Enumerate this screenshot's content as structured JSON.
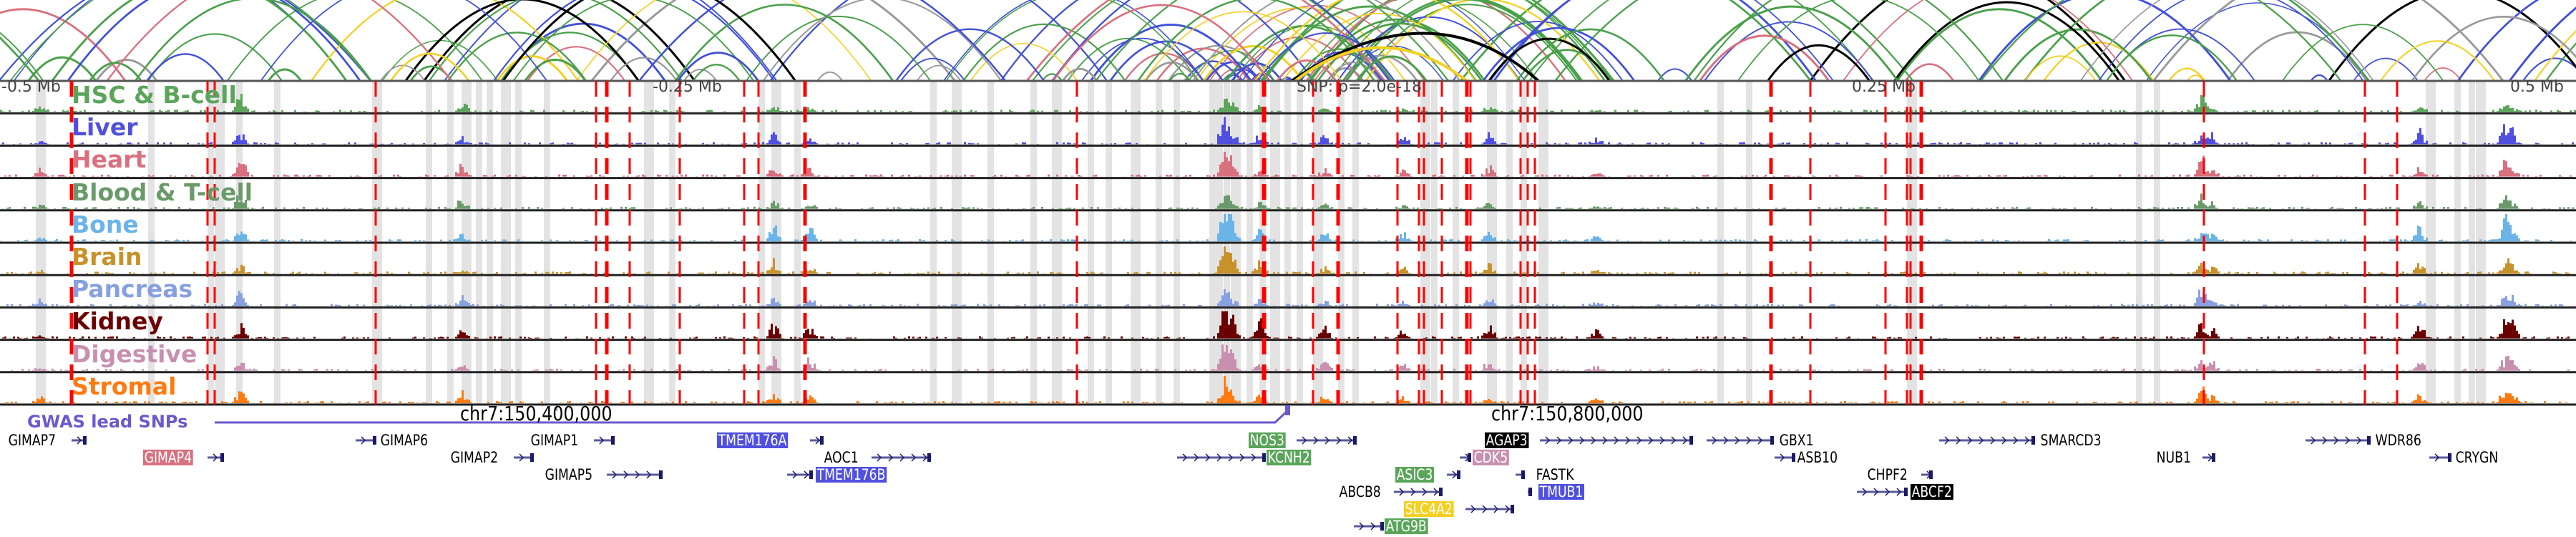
{
  "axis": {
    "ticks": [
      "-0.5 Mb",
      "-0.25 Mb",
      "0.25 Mb",
      "0.5 Mb"
    ],
    "snp_label": "SNP: p=2.0e-18"
  },
  "tracks": [
    {
      "label": "HSC & B-cell",
      "color": "#5aa55a"
    },
    {
      "label": "Liver",
      "color": "#5050e0"
    },
    {
      "label": "Heart",
      "color": "#d9707f"
    },
    {
      "label": "Blood & T-cell",
      "color": "#6a9a6a"
    },
    {
      "label": "Bone",
      "color": "#6ab4e8"
    },
    {
      "label": "Brain",
      "color": "#c8922a"
    },
    {
      "label": "Pancreas",
      "color": "#86a0e0"
    },
    {
      "label": "Kidney",
      "color": "#6a0000"
    },
    {
      "label": "Digestive",
      "color": "#c890b0"
    },
    {
      "label": "Stromal",
      "color": "#ff7a10"
    }
  ],
  "coordinates": [
    "chr7:150,400,000",
    "chr7:150,800,000"
  ],
  "gwas_label": "GWAS lead SNPs",
  "genes": [
    {
      "name": "GIMAP7",
      "box": null
    },
    {
      "name": "GIMAP4",
      "box": "#d9707f"
    },
    {
      "name": "GIMAP6",
      "box": null
    },
    {
      "name": "GIMAP1",
      "box": null
    },
    {
      "name": "GIMAP2",
      "box": null
    },
    {
      "name": "GIMAP5",
      "box": null
    },
    {
      "name": "TMEM176A",
      "box": "#5050e0"
    },
    {
      "name": "AOC1",
      "box": null
    },
    {
      "name": "TMEM176B",
      "box": "#5050e0"
    },
    {
      "name": "NOS3",
      "box": "#5aa55a"
    },
    {
      "name": "KCNH2",
      "box": "#5aa55a"
    },
    {
      "name": "ASIC3",
      "box": "#5aa55a"
    },
    {
      "name": "ABCB8",
      "box": null
    },
    {
      "name": "SLC4A2",
      "box": "#f5d020"
    },
    {
      "name": "ATG9B",
      "box": "#5aa55a"
    },
    {
      "name": "AGAP3",
      "box": "#000000"
    },
    {
      "name": "CDK5",
      "box": "#c890b0"
    },
    {
      "name": "FASTK",
      "box": null
    },
    {
      "name": "TMUB1",
      "box": "#5050e0"
    },
    {
      "name": "GBX1",
      "box": null
    },
    {
      "name": "ASB10",
      "box": null
    },
    {
      "name": "CHPF2",
      "box": null
    },
    {
      "name": "ABCF2",
      "box": "#000000"
    },
    {
      "name": "SMARCD3",
      "box": null
    },
    {
      "name": "NUB1",
      "box": null
    },
    {
      "name": "WDR86",
      "box": null
    },
    {
      "name": "CRYGN",
      "box": null
    }
  ]
}
